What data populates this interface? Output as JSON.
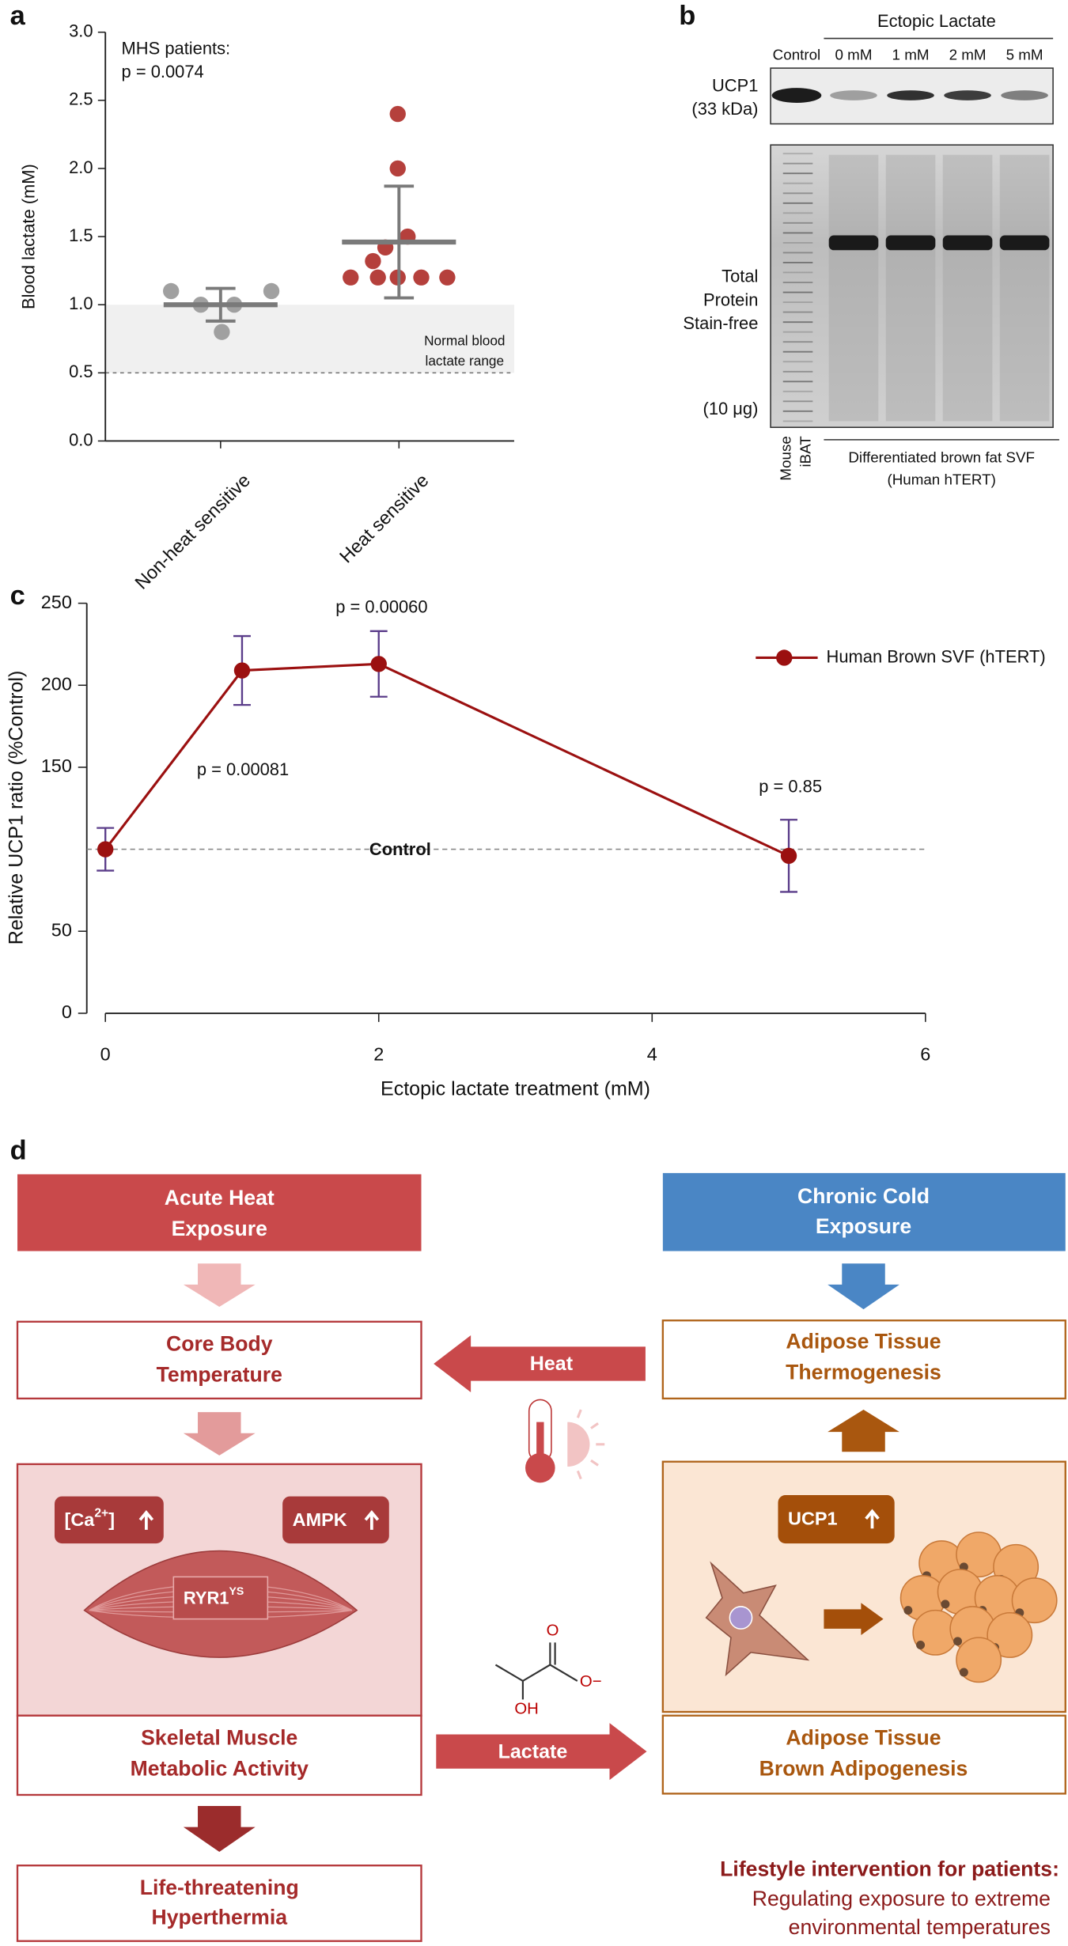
{
  "panel_labels": [
    "a",
    "b",
    "c",
    "d"
  ],
  "chart_data": [
    {
      "type": "dot",
      "y_label": "Blood lactate (mM)",
      "annotation": [
        "MHS patients:",
        "p = 0.0074"
      ],
      "categories": [
        "Non-heat sensitive",
        "Heat sensitive"
      ],
      "groups": [
        {
          "color": "#a0a0a0",
          "values": [
            1.1,
            1.0,
            1.0,
            1.1,
            0.8
          ],
          "mean": 1.0,
          "range": [
            0.88,
            1.12
          ]
        },
        {
          "color": "#b5403c",
          "values": [
            2.4,
            2.0,
            1.5,
            1.42,
            1.32,
            1.2,
            1.2,
            1.2,
            1.2,
            1.2
          ],
          "mean": 1.46,
          "range": [
            1.05,
            1.87
          ]
        }
      ],
      "ylim": [
        0,
        3.0
      ],
      "yticks": [
        {
          "value": 0,
          "label": "0.0"
        },
        0.5,
        {
          "value": 1,
          "label": "1.0"
        },
        1.5,
        {
          "value": 2,
          "label": "2.0"
        },
        2.5,
        {
          "value": 3,
          "label": "3.0"
        }
      ],
      "reference_band": {
        "range": [
          0.5,
          1.0
        ],
        "label": [
          "Normal blood",
          "lactate range"
        ]
      }
    },
    {
      "type": "line",
      "x_label": "Ectopic lactate treatment (mM)",
      "y_label": "Relative UCP1 ratio (%Control)",
      "x": [
        0,
        1,
        2,
        5
      ],
      "series": [
        {
          "name": "Human Brown SVF (hTERT)",
          "color": "#9b1010",
          "values": [
            100,
            209,
            213,
            96
          ],
          "errors": [
            13,
            21,
            20,
            22
          ]
        }
      ],
      "xlim": [
        0,
        6
      ],
      "xticks": [
        0,
        2,
        4,
        6
      ],
      "ylim": [
        0,
        250
      ],
      "yticks": [
        0,
        50,
        150,
        200,
        250
      ],
      "reference_line": {
        "value": 100,
        "label": "Control"
      },
      "annotations": [
        "p = 0.00060",
        "p = 0.00081",
        "p = 0.85"
      ]
    }
  ],
  "blot": {
    "header": "Ectopic Lactate",
    "lanes": [
      "Control",
      "0 mM",
      "1 mM",
      "2 mM",
      "5 mM"
    ],
    "ucp1": [
      "UCP1",
      "(33 kDa)"
    ],
    "stain": [
      "Total",
      "Protein",
      "Stain-free"
    ],
    "load": "(10 μg)",
    "mouse": [
      "Mouse",
      "iBAT"
    ],
    "svf": [
      "Differentiated brown fat SVF",
      "(Human hTERT)"
    ]
  },
  "diagram": {
    "acute_heat": [
      "Acute Heat",
      "Exposure"
    ],
    "core_temp": [
      "Core Body",
      "Temperature"
    ],
    "ca": [
      "[Ca",
      "2+",
      "]"
    ],
    "ampk": "AMPK",
    "ryr1": [
      "RYR1",
      "YS"
    ],
    "muscle": [
      "Skeletal Muscle",
      "Metabolic Activity"
    ],
    "hyperthermia": [
      "Life-threatening",
      "Hyperthermia"
    ],
    "cold": [
      "Chronic Cold",
      "Exposure"
    ],
    "thermogenesis": [
      "Adipose Tissue",
      "Thermogenesis"
    ],
    "ucp1": "UCP1",
    "adipogenesis": [
      "Adipose Tissue",
      "Brown Adipogenesis"
    ],
    "heat": "Heat",
    "lactate": "Lactate",
    "molecule": [
      "O",
      "O−",
      "OH"
    ],
    "intervention": [
      "Lifestyle intervention for patients:",
      "Regulating exposure to extreme",
      "environmental temperatures"
    ]
  }
}
